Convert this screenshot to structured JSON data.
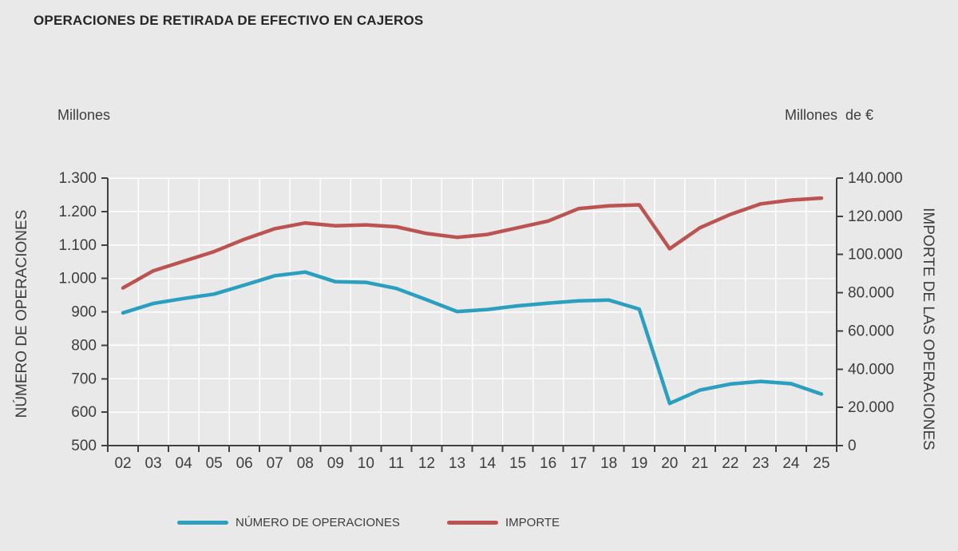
{
  "title": "OPERACIONES DE RETIRADA DE EFECTIVO EN CAJEROS",
  "axis_headers": {
    "left": "Millones",
    "right": "Millones  de €"
  },
  "legend": {
    "items": [
      {
        "label": "NÚMERO DE OPERACIONES",
        "color": "#2a9fbf"
      },
      {
        "label": "IMPORTE",
        "color": "#bb5450"
      }
    ]
  },
  "colors": {
    "background": "#e9e9e9",
    "grid": "#ffffff",
    "axis": "#404040",
    "tick_text": "#3d3d3d",
    "title_text": "#262626",
    "operations_line": "#2a9fbf",
    "amount_line": "#bb5450"
  },
  "chart_data": {
    "type": "line",
    "x": [
      "02",
      "03",
      "04",
      "05",
      "06",
      "07",
      "08",
      "09",
      "10",
      "11",
      "12",
      "13",
      "14",
      "15",
      "16",
      "17",
      "18",
      "19",
      "20",
      "21",
      "22",
      "23",
      "24",
      "25"
    ],
    "series": [
      {
        "name": "NÚMERO DE OPERACIONES",
        "axis": "left",
        "color": "#2a9fbf",
        "values": [
          897,
          925,
          940,
          953,
          980,
          1008,
          1019,
          990,
          988,
          970,
          936,
          901,
          907,
          918,
          926,
          933,
          935,
          908,
          626,
          666,
          684,
          692,
          685,
          654
        ]
      },
      {
        "name": "IMPORTE",
        "axis": "right",
        "color": "#bb5450",
        "values": [
          82500,
          91500,
          96500,
          101500,
          108000,
          113500,
          116500,
          115000,
          115500,
          114500,
          111000,
          109000,
          110500,
          114000,
          117500,
          124000,
          125500,
          126000,
          103000,
          114000,
          121000,
          126500,
          128500,
          129500
        ]
      }
    ],
    "left_axis": {
      "title": "NÚMERO DE OPERACIONES",
      "unit": "Millones",
      "min": 500,
      "max": 1300,
      "tick_values": [
        500,
        600,
        700,
        800,
        900,
        1000,
        1100,
        1200,
        1300
      ],
      "tick_labels": [
        "500",
        "600",
        "700",
        "800",
        "900",
        "1.000",
        "1.100",
        "1.200",
        "1.300"
      ]
    },
    "right_axis": {
      "title": "IMPORTE DE LAS OPERACIONES",
      "unit": "Millones de €",
      "min": 0,
      "max": 140000,
      "tick_values": [
        0,
        20000,
        40000,
        60000,
        80000,
        100000,
        120000,
        140000
      ],
      "tick_labels": [
        "0",
        "20.000",
        "40.000",
        "60.000",
        "80.000",
        "100.000",
        "120.000",
        "140.000"
      ]
    },
    "grid": true,
    "legend_position": "bottom"
  }
}
